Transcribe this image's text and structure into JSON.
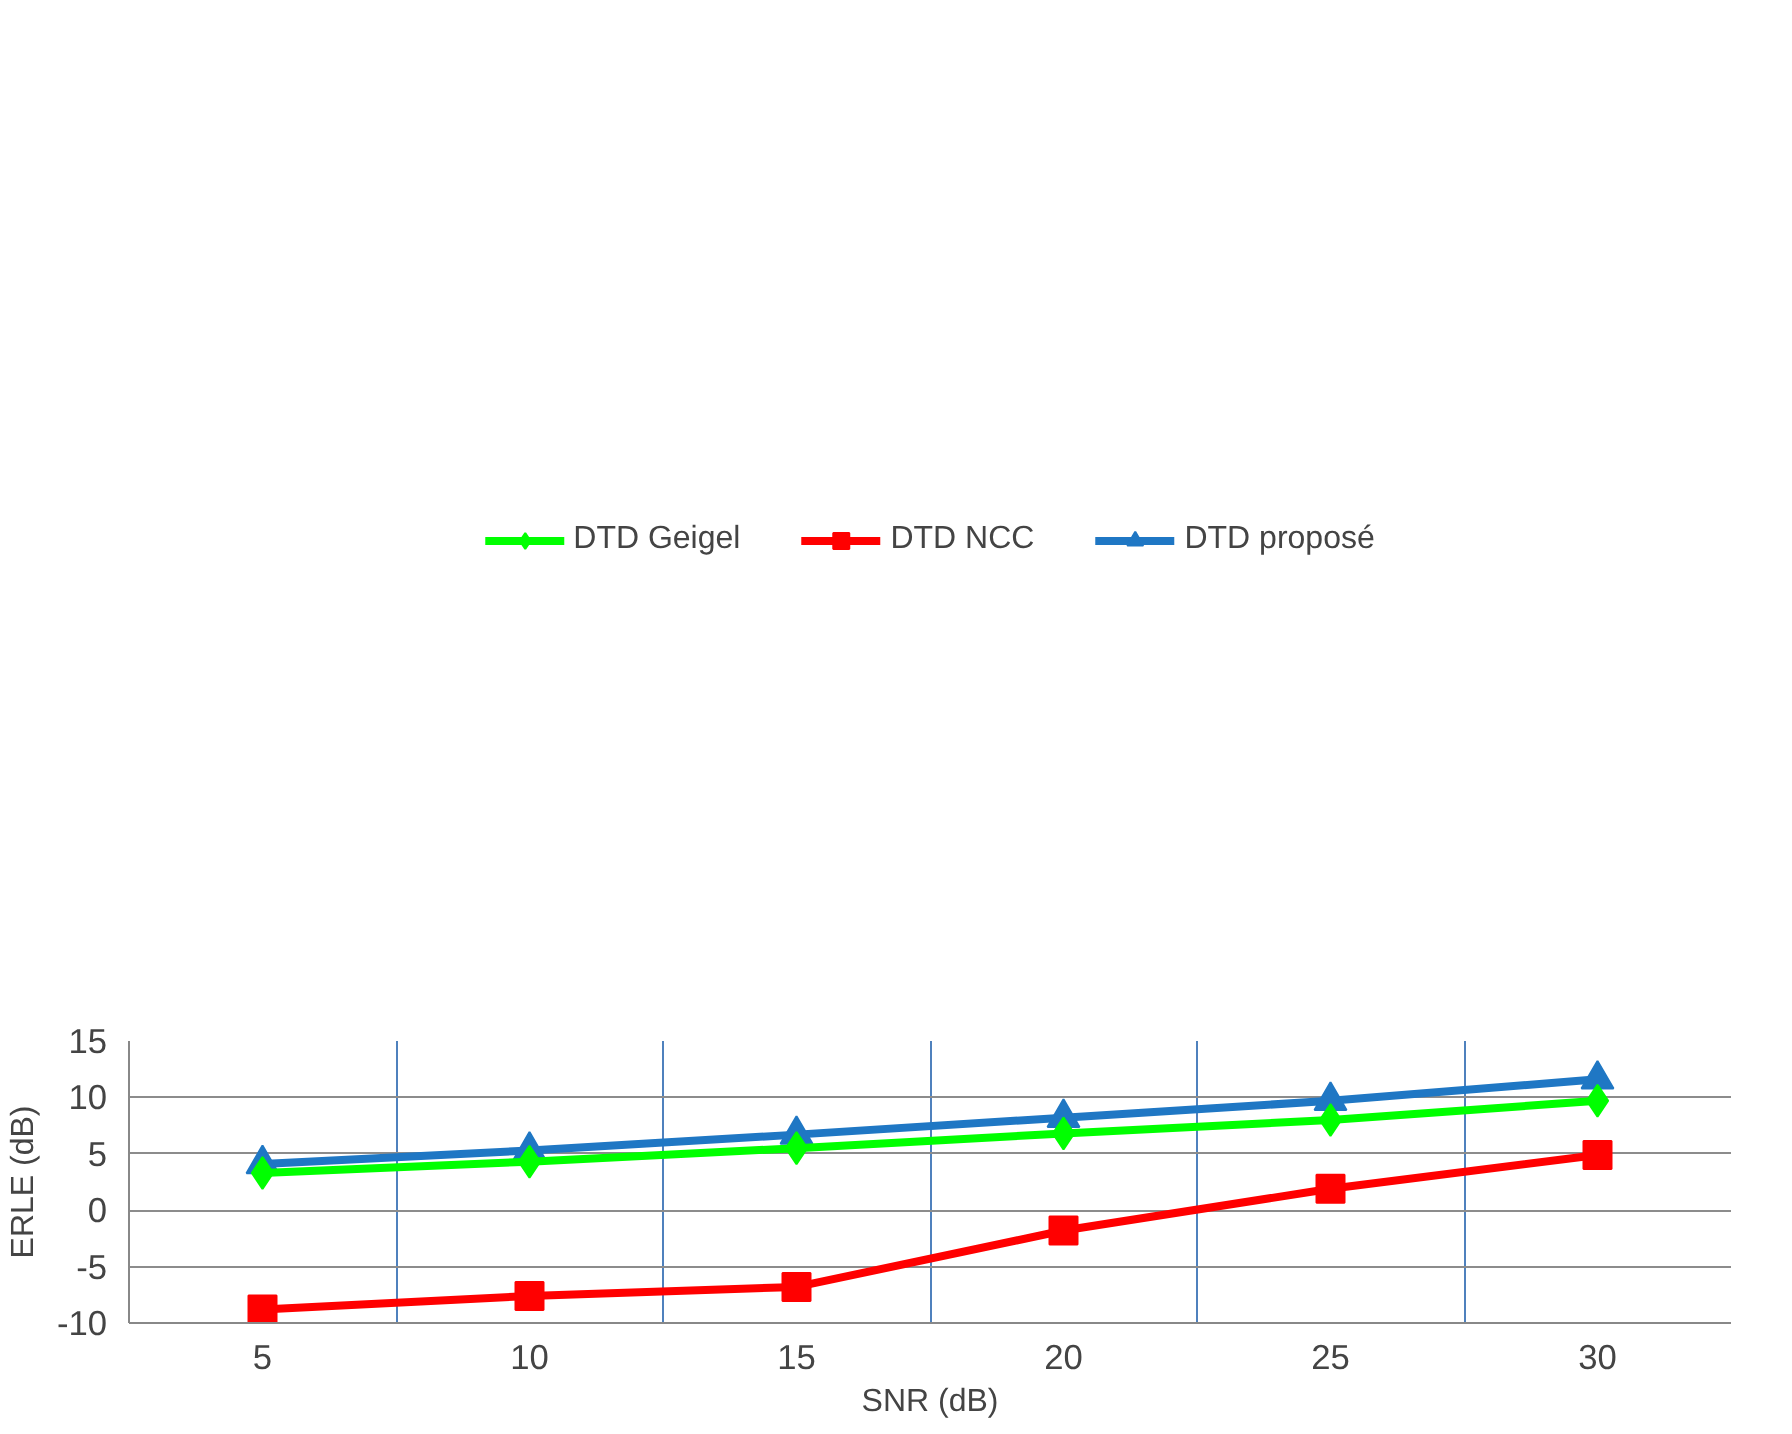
{
  "chart_data": {
    "type": "line",
    "categories": [
      "5",
      "10",
      "15",
      "20",
      "25",
      "30"
    ],
    "xlabel": "SNR (dB)",
    "ylabel": "ERLE (dB)",
    "ylim": [
      -10,
      15
    ],
    "yticks": [
      -10,
      -5,
      0,
      5,
      10,
      15
    ],
    "grid": true,
    "legend": "top",
    "line_style": "solid",
    "series": [
      {
        "name": "DTD Geigel",
        "color": "#00ff00",
        "marker": "diamond",
        "values": [
          3.3,
          4.3,
          5.5,
          6.8,
          8.0,
          9.7
        ]
      },
      {
        "name": "DTD NCC",
        "color": "#ff0000",
        "marker": "square",
        "values": [
          -8.8,
          -7.6,
          -6.8,
          -1.8,
          1.9,
          4.9
        ]
      },
      {
        "name": "DTD proposé",
        "color": "#1f77c4",
        "marker": "triangle",
        "values": [
          4.1,
          5.3,
          6.7,
          8.2,
          9.7,
          11.6
        ]
      }
    ]
  }
}
